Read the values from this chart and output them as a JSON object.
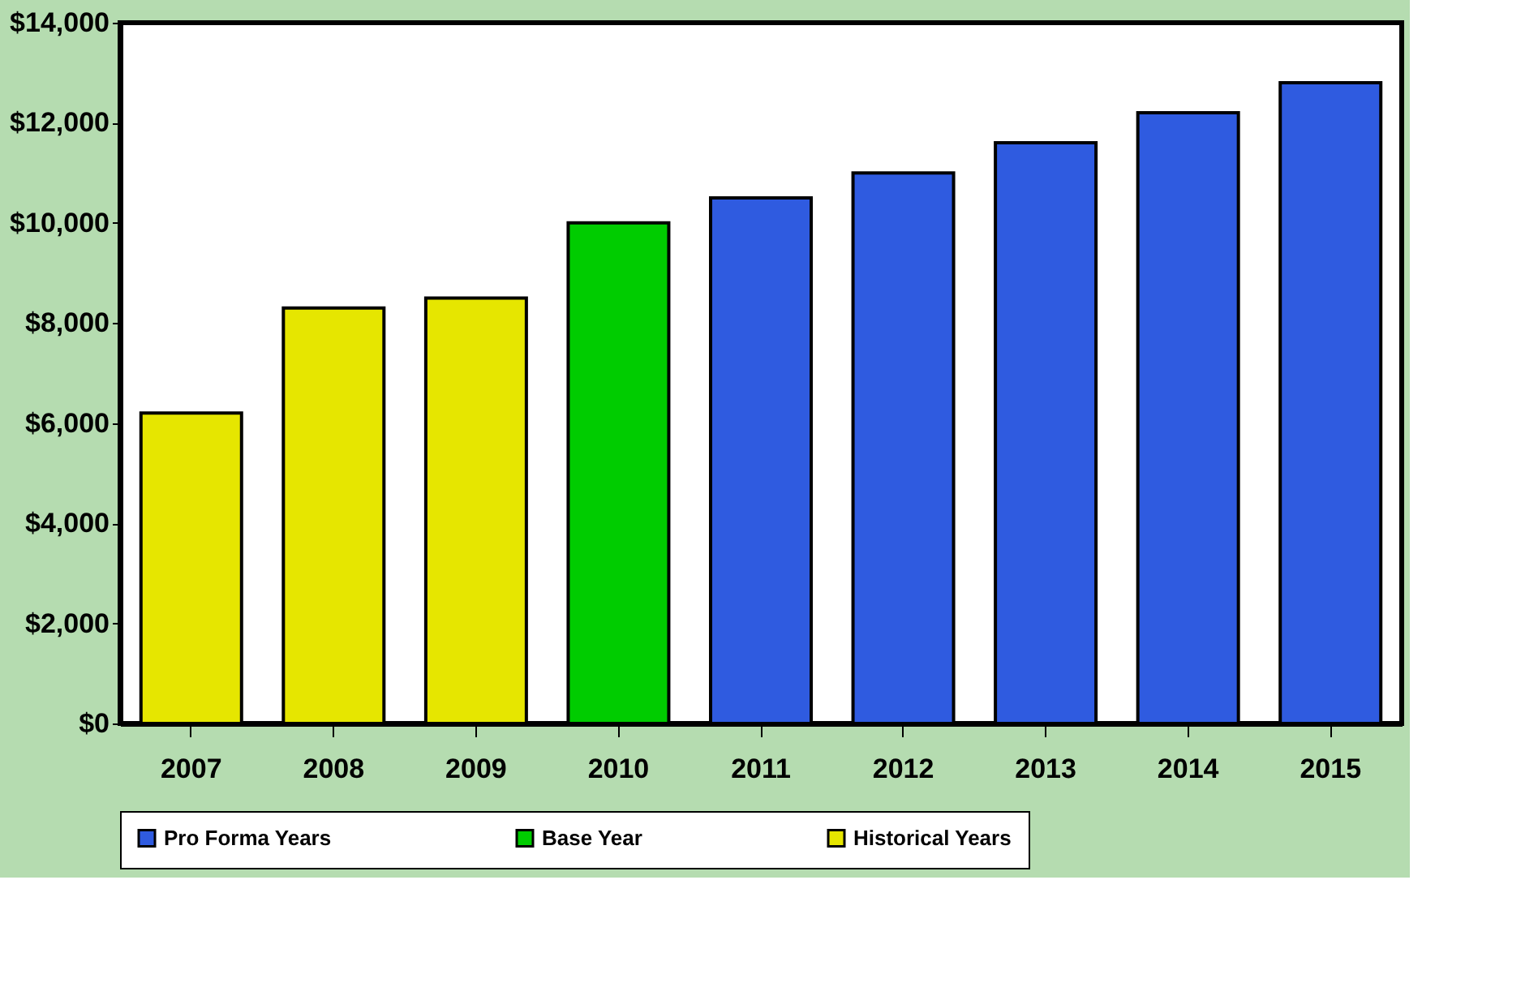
{
  "chart_data": {
    "type": "bar",
    "categories": [
      "2007",
      "2008",
      "2009",
      "2010",
      "2011",
      "2012",
      "2013",
      "2014",
      "2015"
    ],
    "series": [
      {
        "name": "Pro Forma Years",
        "color": "#2f5be0",
        "values": [
          null,
          null,
          null,
          null,
          10500,
          11000,
          11600,
          12200,
          12800
        ]
      },
      {
        "name": "Base Year",
        "color": "#00cc00",
        "values": [
          null,
          null,
          null,
          10000,
          null,
          null,
          null,
          null,
          null
        ]
      },
      {
        "name": "Historical Years",
        "color": "#e6e600",
        "values": [
          6200,
          8300,
          8500,
          null,
          null,
          null,
          null,
          null,
          null
        ]
      }
    ],
    "ylim": [
      0,
      14000
    ],
    "yticks": [
      {
        "value": 0,
        "label": "$0"
      },
      {
        "value": 2000,
        "label": "$2,000"
      },
      {
        "value": 4000,
        "label": "$4,000"
      },
      {
        "value": 6000,
        "label": "$6,000"
      },
      {
        "value": 8000,
        "label": "$8,000"
      },
      {
        "value": 10000,
        "label": "$10,000"
      },
      {
        "value": 12000,
        "label": "$12,000"
      },
      {
        "value": 14000,
        "label": "$14,000"
      }
    ],
    "grid": false,
    "legend": "bottom"
  }
}
